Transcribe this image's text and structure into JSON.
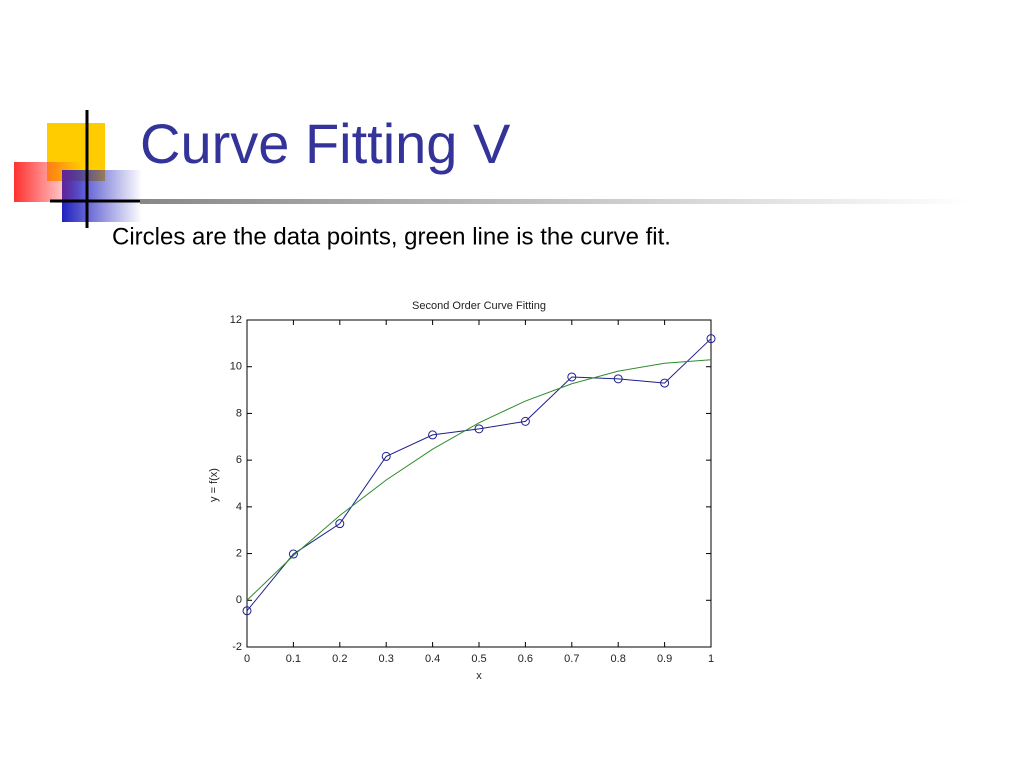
{
  "slide": {
    "title": "Curve Fitting V",
    "text": "Circles are the data points, green line is the curve fit."
  },
  "chart_data": {
    "type": "line",
    "title": "Second Order Curve Fitting",
    "xlabel": "x",
    "ylabel": "y = f(x)",
    "x": [
      0,
      0.1,
      0.2,
      0.3,
      0.4,
      0.5,
      0.6,
      0.7,
      0.8,
      0.9,
      1
    ],
    "series": [
      {
        "color": "#1f1f8f",
        "marker": "circle",
        "values": [
          -0.45,
          1.98,
          3.28,
          6.16,
          7.08,
          7.34,
          7.66,
          9.56,
          9.48,
          9.3,
          11.2
        ]
      },
      {
        "color": "#2e8b2e",
        "marker": null,
        "values": [
          0,
          1.91,
          3.63,
          5.15,
          6.47,
          7.6,
          8.53,
          9.27,
          9.81,
          10.15,
          10.3
        ]
      }
    ],
    "xlim": [
      0,
      1
    ],
    "xticks": [
      0,
      0.1,
      0.2,
      0.3,
      0.4,
      0.5,
      0.6,
      0.7,
      0.8,
      0.9,
      1
    ],
    "ylim": [
      -2,
      12
    ],
    "yticks": [
      -2,
      0,
      2,
      4,
      6,
      8,
      10,
      12
    ],
    "grid": false
  }
}
